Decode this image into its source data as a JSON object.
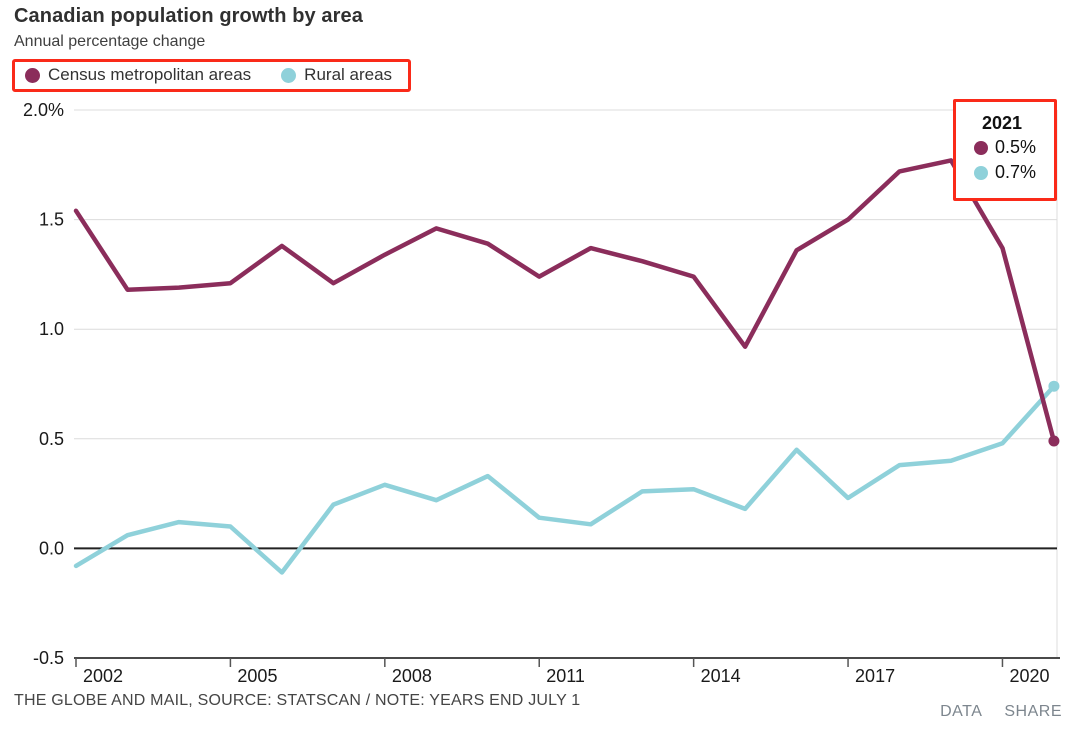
{
  "header": {
    "title": "Canadian population growth by area",
    "subtitle": "Annual percentage change"
  },
  "legend": {
    "box_color": "#fa2a19",
    "items": [
      {
        "label": "Census metropolitan areas",
        "color": "#8b2d5b"
      },
      {
        "label": "Rural areas",
        "color": "#8fd1da"
      }
    ]
  },
  "annotation": {
    "year_label": "2021",
    "box_color": "#fa2a19",
    "items": [
      {
        "value_label": "0.5%",
        "color": "#8b2d5b"
      },
      {
        "value_label": "0.7%",
        "color": "#8fd1da"
      }
    ]
  },
  "footer": {
    "source": "THE GLOBE AND MAIL, SOURCE: STATSCAN / NOTE: YEARS END JULY 1",
    "links": [
      {
        "label": "DATA"
      },
      {
        "label": "SHARE"
      }
    ]
  },
  "chart_data": {
    "type": "line",
    "title": "Canadian population growth by area",
    "ylabel": "Annual percentage change (%)",
    "x": [
      2002,
      2003,
      2004,
      2005,
      2006,
      2007,
      2008,
      2009,
      2010,
      2011,
      2012,
      2013,
      2014,
      2015,
      2016,
      2017,
      2018,
      2019,
      2020,
      2021
    ],
    "series": [
      {
        "name": "Census metropolitan areas",
        "color": "#8b2d5b",
        "values": [
          1.54,
          1.18,
          1.19,
          1.21,
          1.38,
          1.21,
          1.34,
          1.46,
          1.39,
          1.24,
          1.37,
          1.31,
          1.24,
          0.92,
          1.36,
          1.5,
          1.72,
          1.77,
          1.37,
          0.49
        ],
        "end_label": "0.5%"
      },
      {
        "name": "Rural areas",
        "color": "#8fd1da",
        "values": [
          -0.08,
          0.06,
          0.12,
          0.1,
          -0.11,
          0.2,
          0.29,
          0.22,
          0.33,
          0.14,
          0.11,
          0.26,
          0.27,
          0.18,
          0.45,
          0.23,
          0.38,
          0.4,
          0.48,
          0.74
        ],
        "end_label": "0.7%"
      }
    ],
    "ylim": [
      -0.5,
      2.0
    ],
    "yticks": [
      {
        "value": 2.0,
        "label": "2.0%"
      },
      {
        "value": 1.5,
        "label": "1.5"
      },
      {
        "value": 1.0,
        "label": "1.0"
      },
      {
        "value": 0.5,
        "label": "0.5"
      },
      {
        "value": 0.0,
        "label": "0.0"
      },
      {
        "value": -0.5,
        "label": "-0.5"
      }
    ],
    "xticks": [
      2002,
      2005,
      2008,
      2011,
      2014,
      2017,
      2020
    ],
    "grid": "horizontal",
    "legend_position": "top-left",
    "annotation_year": 2021,
    "end_dots": true,
    "colors": {
      "gridline": "#dcdcdc",
      "zero_line": "#222222",
      "axis_line": "#4a4a4a",
      "tick": "#555555",
      "tick_label": "#1a1a1a"
    }
  }
}
